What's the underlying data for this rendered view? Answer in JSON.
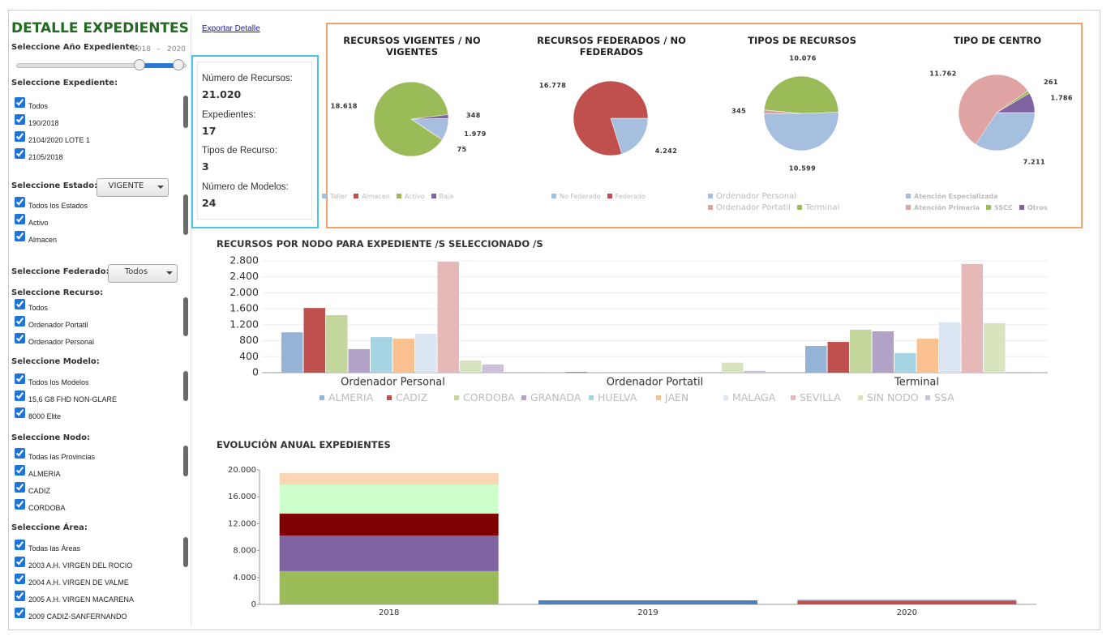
{
  "sidebar": {
    "title": "DETALLE EXPEDIENTES",
    "year_label": "Seleccione Año Expediente:",
    "year_range": [
      2018,
      2020
    ],
    "year_separator": "–",
    "sections": [
      {
        "label": "Seleccione Expediente:",
        "options": [
          "Todos",
          "190/2018",
          "2104/2020 LOTE 1",
          "2105/2018"
        ]
      },
      {
        "label": "Seleccione Estado:",
        "dropdown": "VIGENTE",
        "options": [
          "Todos los Estados",
          "Activo",
          "Almacen"
        ]
      },
      {
        "label": "Seleccione Federado:",
        "dropdown": "Todos",
        "options": []
      },
      {
        "label": "Seleccione Recurso:",
        "options": [
          "Todos",
          "Ordenador Portatil",
          "Ordenador Personal"
        ]
      },
      {
        "label": "Seleccione Modelo:",
        "options": [
          "Todos los Modelos",
          "15,6 G8 FHD NON-GLARE",
          "8000 Elite"
        ]
      },
      {
        "label": "Seleccione Nodo:",
        "options": [
          "Todas las Provincias",
          "ALMERIA",
          "CADIZ",
          "CORDOBA"
        ]
      },
      {
        "label": "Seleccione Área:",
        "options": [
          "Todas las Áreas",
          "2003 A.H. VIRGEN DEL ROCIO",
          "2004 A.H. VIRGEN DE VALME",
          "2005 A.H. VIRGEN MACARENA",
          "2009 CADIZ-SANFERNANDO"
        ]
      }
    ]
  },
  "export_link": "Exportar Detalle",
  "summary": [
    {
      "label": "Número de Recursos:",
      "value": "21.020"
    },
    {
      "label": "Expedientes:",
      "value": "17"
    },
    {
      "label": "Tipos de Recurso:",
      "value": "3"
    },
    {
      "label": "Número de Modelos:",
      "value": "24"
    }
  ],
  "chart_data": [
    {
      "type": "pie",
      "title": "RECURSOS VIGENTES / NO VIGENTES",
      "categories": [
        "Taller",
        "Almacen",
        "Activo",
        "Baja"
      ],
      "values": [
        1979,
        75,
        18618,
        348
      ],
      "value_labels": [
        "1.979",
        "75",
        "18.618",
        "348"
      ],
      "colors": [
        "#a7bfdf",
        "#c0504d",
        "#9bbb59",
        "#8064a2"
      ]
    },
    {
      "type": "pie",
      "title": "RECURSOS FEDERADOS / NO FEDERADOS",
      "categories": [
        "No Federado",
        "Federado"
      ],
      "values": [
        4242,
        16778
      ],
      "value_labels": [
        "4.242",
        "16.778"
      ],
      "colors": [
        "#a7bfdf",
        "#c0504d"
      ]
    },
    {
      "type": "pie",
      "title": "TIPOS DE RECURSOS",
      "categories": [
        "Ordenador Personal",
        "Ordenador Portatil",
        "Terminal"
      ],
      "values": [
        10599,
        345,
        10076
      ],
      "value_labels": [
        "10.599",
        "345",
        "10.076"
      ],
      "colors": [
        "#a7bfdf",
        "#dea3a2",
        "#9bbb59"
      ]
    },
    {
      "type": "pie",
      "title": "TIPO DE CENTRO",
      "categories": [
        "Atención Especializada",
        "Atención Primaria",
        "SSCC",
        "Otros"
      ],
      "values": [
        7211,
        11762,
        261,
        1786
      ],
      "value_labels": [
        "7.211",
        "11.762",
        "261",
        "1.786"
      ],
      "colors": [
        "#a7bfdf",
        "#dea3a2",
        "#9bbb59",
        "#8064a2"
      ]
    },
    {
      "type": "bar",
      "title": "RECURSOS POR NODO PARA EXPEDIENTE /S SELECCIONADO /S",
      "categories": [
        "Ordenador Personal",
        "Ordenador Portatil",
        "Terminal"
      ],
      "series": [
        {
          "name": "ALMERIA",
          "color": "#95b3d7",
          "values": [
            1010,
            10,
            670
          ]
        },
        {
          "name": "CADIZ",
          "color": "#c0504d",
          "values": [
            1620,
            15,
            770
          ]
        },
        {
          "name": "CORDOBA",
          "color": "#c3d69b",
          "values": [
            1440,
            5,
            1075
          ]
        },
        {
          "name": "GRANADA",
          "color": "#b3a2c7",
          "values": [
            590,
            5,
            1035
          ]
        },
        {
          "name": "HUELVA",
          "color": "#a5d5e2",
          "values": [
            890,
            5,
            490
          ]
        },
        {
          "name": "JAEN",
          "color": "#fac090",
          "values": [
            850,
            5,
            850
          ]
        },
        {
          "name": "MALAGA",
          "color": "#dce6f2",
          "values": [
            975,
            5,
            1260
          ]
        },
        {
          "name": "SEVILLA",
          "color": "#e6b9b8",
          "values": [
            2780,
            0,
            2720
          ]
        },
        {
          "name": "SIN NODO",
          "color": "#d7e4bd",
          "values": [
            305,
            250,
            1240
          ]
        },
        {
          "name": "SSA",
          "color": "#ccc1da",
          "values": [
            205,
            45,
            20
          ]
        }
      ],
      "ylim": [
        0,
        2800
      ],
      "yticks": [
        0,
        400,
        800,
        {
          "value": 1200,
          "label": "1.200"
        },
        {
          "value": 1600,
          "label": "1.600"
        },
        {
          "value": 2000,
          "label": "2.000"
        },
        {
          "value": 2400,
          "label": "2.400"
        },
        {
          "value": 2800,
          "label": "2.800"
        }
      ],
      "grid": true
    },
    {
      "type": "stacked_bar",
      "title": "EVOLUCIÓN ANUAL EXPEDIENTES",
      "categories": [
        "2018",
        "2019",
        "2020"
      ],
      "series": [
        {
          "color": "#9bbb59",
          "values": [
            4950,
            null,
            null
          ]
        },
        {
          "color": "#8064a2",
          "values": [
            5290,
            null,
            null
          ]
        },
        {
          "color": "#7f0000",
          "values": [
            3250,
            null,
            null
          ]
        },
        {
          "color": "#ccffcc",
          "values": [
            4340,
            null,
            null
          ]
        },
        {
          "color": "#fcd5b4",
          "values": [
            1690,
            null,
            null
          ]
        },
        {
          "color": "#4f81bd",
          "values": [
            null,
            600,
            null
          ]
        },
        {
          "color": "#c0504d",
          "values": [
            null,
            null,
            560
          ]
        },
        {
          "color": "#95b3d7",
          "values": [
            null,
            null,
            130
          ]
        }
      ],
      "ylim": [
        0,
        20000
      ],
      "yticks": [
        0,
        {
          "value": 4000,
          "label": "4.000"
        },
        {
          "value": 8000,
          "label": "8.000"
        },
        {
          "value": 12000,
          "label": "12.000"
        },
        {
          "value": 16000,
          "label": "16.000"
        },
        {
          "value": 20000,
          "label": "20.000"
        }
      ],
      "grid": false
    }
  ]
}
